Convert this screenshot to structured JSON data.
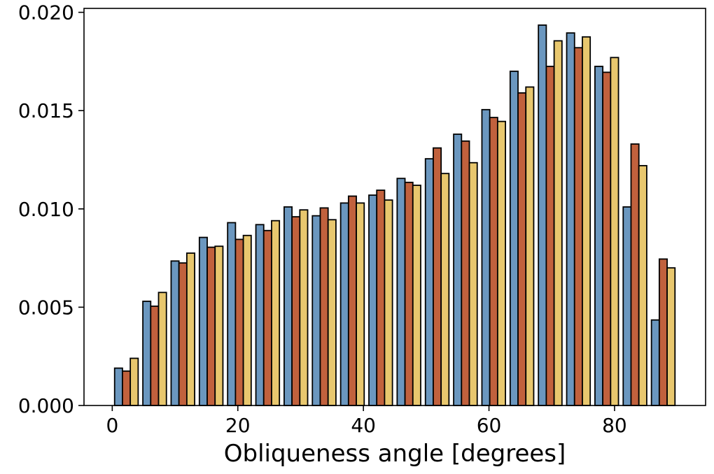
{
  "chart_data": {
    "type": "bar",
    "xlabel": "Obliqueness angle [degrees]",
    "ylabel": "",
    "xlim": [
      -4.5,
      94.5
    ],
    "ylim": [
      0,
      0.0202
    ],
    "xticks": [
      0,
      20,
      40,
      60,
      80
    ],
    "xtick_labels": [
      "0",
      "20",
      "40",
      "60",
      "80"
    ],
    "yticks": [
      0,
      0.005,
      0.01,
      0.015,
      0.02
    ],
    "ytick_labels": [
      "0.000",
      "0.005",
      "0.010",
      "0.015",
      "0.020"
    ],
    "grid": false,
    "bin_width": 4.5,
    "bin_starts": [
      0,
      4.5,
      9,
      13.5,
      18,
      22.5,
      27,
      31.5,
      36,
      40.5,
      45,
      49.5,
      54,
      58.5,
      63,
      67.5,
      72,
      76.5,
      81,
      85.5
    ],
    "series": [
      {
        "color": "#6b97bf",
        "values": [
          0.0019,
          0.0053,
          0.00735,
          0.00855,
          0.0093,
          0.0092,
          0.0101,
          0.00965,
          0.0103,
          0.0107,
          0.01155,
          0.01255,
          0.0138,
          0.01505,
          0.017,
          0.01935,
          0.01895,
          0.01725,
          0.0101,
          0.00435
        ]
      },
      {
        "color": "#c1613d",
        "values": [
          0.00175,
          0.00505,
          0.00725,
          0.00805,
          0.00845,
          0.0089,
          0.0096,
          0.01005,
          0.01065,
          0.01095,
          0.01135,
          0.0131,
          0.01345,
          0.01465,
          0.0159,
          0.01725,
          0.0182,
          0.01695,
          0.0133,
          0.00745
        ]
      },
      {
        "color": "#e8c76e",
        "values": [
          0.0024,
          0.00575,
          0.00775,
          0.0081,
          0.00865,
          0.0094,
          0.00995,
          0.00945,
          0.0103,
          0.01045,
          0.0112,
          0.0118,
          0.01235,
          0.01445,
          0.0162,
          0.01855,
          0.01875,
          0.0177,
          0.0122,
          0.007
        ]
      }
    ]
  }
}
